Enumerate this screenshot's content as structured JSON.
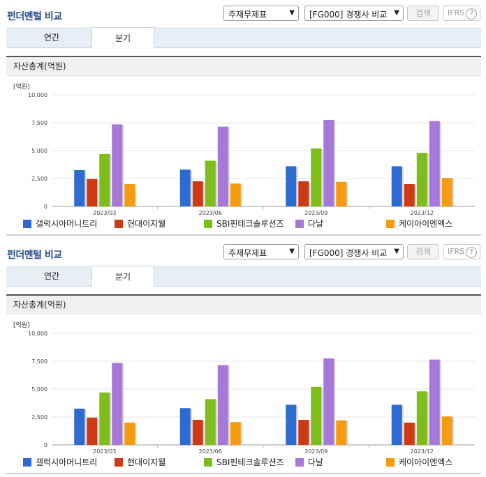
{
  "header": {
    "title": "펀더멘털 비교",
    "statement_select": "주재무제표",
    "compare_select": "[FG000] 경쟁사 비교",
    "search_label": "검색",
    "ifrs_label": "IFRS",
    "help_glyph": "?"
  },
  "tabs": [
    "연간",
    "분기"
  ],
  "active_tab": "분기",
  "section_title": "자산총계(억원)",
  "unit_label": "[억원]",
  "colors": {
    "title": "#2a4e8c",
    "series": [
      "#2d6bd1",
      "#cc3a16",
      "#7fbd1c",
      "#a678d8",
      "#f59b12"
    ]
  },
  "chart_data": {
    "type": "bar",
    "categories": [
      "2023/03",
      "2023/06",
      "2023/09",
      "2023/12"
    ],
    "yticks": [
      "0",
      "2,500",
      "5,000",
      "7,500",
      "10,000"
    ],
    "ylim": [
      0,
      10000
    ],
    "ylabel": "[억원]",
    "legend_position": "bottom",
    "series": [
      {
        "name": "갤럭시아머니트리",
        "values": [
          3250,
          3300,
          3600,
          3600
        ]
      },
      {
        "name": "현대이지웰",
        "values": [
          2450,
          2250,
          2250,
          2000
        ]
      },
      {
        "name": "SBI핀테크솔루션즈",
        "values": [
          4700,
          4100,
          5200,
          4800
        ]
      },
      {
        "name": "다날",
        "values": [
          7350,
          7150,
          7750,
          7650
        ]
      },
      {
        "name": "케이아이엔엑스",
        "values": [
          2000,
          2050,
          2200,
          2550
        ]
      }
    ]
  }
}
